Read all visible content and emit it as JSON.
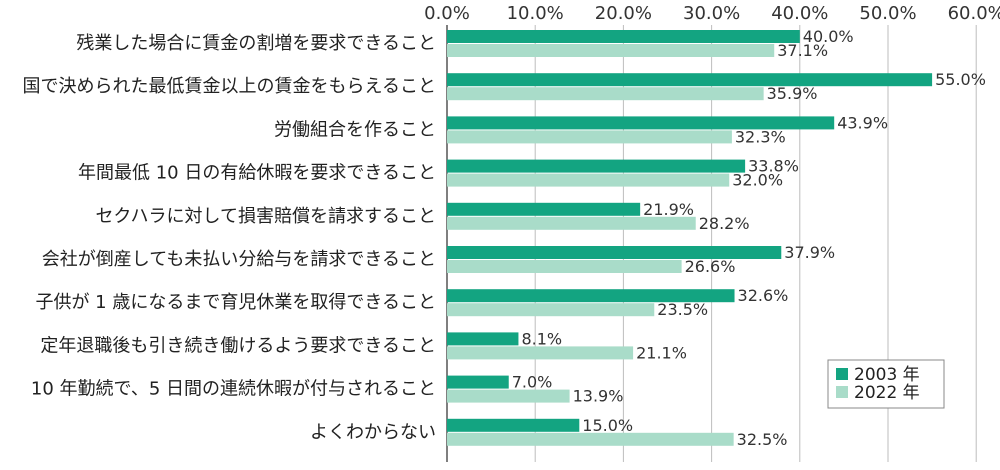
{
  "chart_data": {
    "type": "bar",
    "orientation": "horizontal",
    "categories": [
      "残業した場合に賃金の割増を要求できること",
      "国で決められた最低賃金以上の賃金をもらえること",
      "労働組合を作ること",
      "年間最低 10 日の有給休暇を要求できること",
      "セクハラに対して損害賠償を請求すること",
      "会社が倒産しても未払い分給与を請求できること",
      "子供が 1 歳になるまで育児休業を取得できること",
      "定年退職後も引き続き働けるよう要求できること",
      "10 年勤続で、5 日間の連続休暇が付与されること",
      "よくわからない"
    ],
    "series": [
      {
        "name": "2003 年",
        "color": "#13a481",
        "values": [
          40.0,
          55.0,
          43.9,
          33.8,
          21.9,
          37.9,
          32.6,
          8.1,
          7.0,
          15.0
        ],
        "labels": [
          "40.0%",
          "55.0%",
          "43.9%",
          "33.8%",
          "21.9%",
          "37.9%",
          "32.6%",
          "8.1%",
          "7.0%",
          "15.0%"
        ]
      },
      {
        "name": "2022 年",
        "color": "#a9dcc9",
        "values": [
          37.1,
          35.9,
          32.3,
          32.0,
          28.2,
          26.6,
          23.5,
          21.1,
          13.9,
          32.5
        ],
        "labels": [
          "37.1%",
          "35.9%",
          "32.3%",
          "32.0%",
          "28.2%",
          "26.6%",
          "23.5%",
          "21.1%",
          "13.9%",
          "32.5%"
        ]
      }
    ],
    "xlim": [
      0,
      60
    ],
    "ticks": [
      0,
      10,
      20,
      30,
      40,
      50,
      60
    ],
    "tick_labels": [
      "0.0%",
      "10.0%",
      "20.0%",
      "30.0%",
      "40.0%",
      "50.0%",
      "60.0%"
    ],
    "grid": true,
    "legend_position": "bottom-right"
  }
}
